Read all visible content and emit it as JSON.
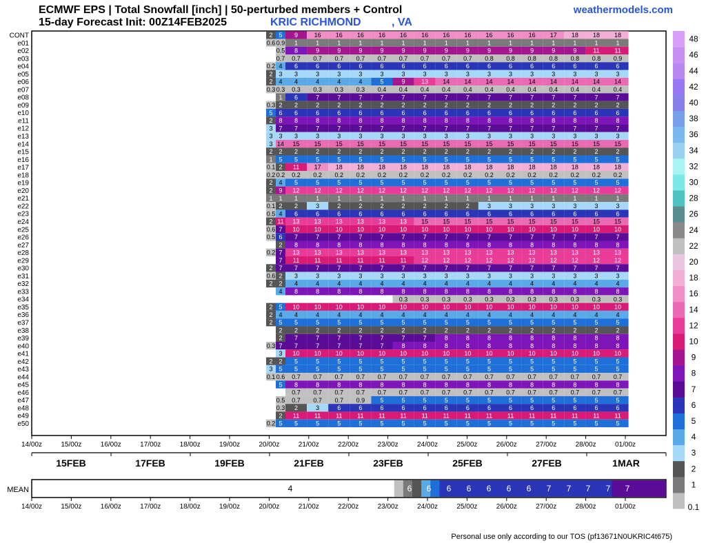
{
  "header": {
    "title": "ECMWF EPS | Total Snowfall [inch] | 50-perturbed members + Control",
    "subtitle": "15-day Forecast Init: 00Z14FEB2025",
    "station": "KRIC RICHMOND",
    "state": ", VA",
    "brand": "weathermodels.com"
  },
  "footer": {
    "tos": "Personal use only according to our TOS (pf13671N0UKRIC4t675)"
  },
  "colors": {
    "brand": "#2a55d8",
    "scale": [
      "#c0c0c0",
      "#7a7a7a",
      "#555555",
      "#a7d8f8",
      "#5aaae8",
      "#1f6fd8",
      "#2a35b8",
      "#5a0c96",
      "#7e15b8",
      "#a5158f",
      "#d81b76",
      "#e83c98",
      "#ea6ab3",
      "#f08fc5",
      "#f2b0d6",
      "#e8c6e0",
      "#c0c0c0",
      "#8a8a8a",
      "#5a8e8e",
      "#4ec1c1",
      "#7de8e8",
      "#a8f4f4",
      "#9ad0f0",
      "#7cb8f0",
      "#78a0e8",
      "#8880e8",
      "#9878f0",
      "#b888f0",
      "#c890f0",
      "#d8a0f8"
    ]
  },
  "chart_data": {
    "type": "heatmap",
    "title": "ECMWF EPS | Total Snowfall [inch] | 50-perturbed members + Control",
    "units": "inch",
    "x_ticks": [
      "14/00z",
      "15/00z",
      "16/00z",
      "17/00z",
      "18/00z",
      "19/00z",
      "20/00z",
      "21/00z",
      "22/00z",
      "23/00z",
      "24/00z",
      "25/00z",
      "26/00z",
      "27/00z",
      "28/00z",
      "01/00z"
    ],
    "date_labels": [
      "15FEB",
      "17FEB",
      "19FEB",
      "21FEB",
      "23FEB",
      "25FEB",
      "27FEB",
      "1MAR"
    ],
    "colorbar_ticks": [
      "0.1",
      "1",
      "2",
      "3",
      "4",
      "5",
      "6",
      "7",
      "8",
      "9",
      "10",
      "12",
      "14",
      "16",
      "18",
      "20",
      "22",
      "24",
      "26",
      "28",
      "30",
      "32",
      "34",
      "36",
      "38",
      "40",
      "42",
      "44",
      "46",
      "48"
    ],
    "mean_label": "MEAN",
    "mean": [
      null,
      null,
      null,
      null,
      null,
      null,
      null,
      null,
      null,
      null,
      null,
      null,
      null,
      null,
      null,
      null,
      null,
      null,
      null,
      null,
      null,
      null,
      null,
      null,
      null,
      null,
      null,
      null,
      null,
      null,
      null,
      null,
      null,
      null,
      null,
      null,
      null,
      null,
      null,
      null,
      0.2,
      1,
      2,
      4,
      5,
      6,
      6,
      6,
      6,
      6,
      6,
      6,
      6,
      6,
      6,
      6,
      6,
      6,
      6,
      6,
      6,
      6,
      6,
      6,
      7,
      7,
      7,
      7,
      7,
      7
    ],
    "members": [
      {
        "name": "CONT",
        "values": [
          2,
          5,
          9,
          16,
          16,
          16,
          16,
          16,
          16,
          16,
          16,
          16,
          16,
          16,
          17,
          18,
          18,
          18
        ]
      },
      {
        "name": "e01",
        "values": [
          0.6,
          0.9,
          1,
          1,
          1,
          1,
          1,
          1,
          1,
          1,
          1,
          1,
          1,
          1,
          1,
          1,
          1,
          1
        ]
      },
      {
        "name": "e02",
        "values": [
          null,
          0.5,
          8,
          9,
          9,
          9,
          9,
          9,
          9,
          9,
          9,
          9,
          9,
          9,
          9,
          9,
          11,
          11
        ]
      },
      {
        "name": "e03",
        "values": [
          null,
          0.7,
          0.7,
          0.7,
          0.7,
          0.7,
          0.7,
          0.7,
          0.7,
          0.7,
          0.7,
          0.8,
          0.8,
          0.8,
          0.8,
          0.8,
          0.8,
          0.9
        ]
      },
      {
        "name": "e04",
        "values": [
          0.2,
          4,
          6,
          6,
          6,
          6,
          6,
          6,
          6,
          6,
          6,
          6,
          6,
          6,
          6,
          6,
          6,
          6
        ]
      },
      {
        "name": "e05",
        "values": [
          2,
          3,
          3,
          3,
          3,
          3,
          3,
          3,
          3,
          3,
          3,
          3,
          3,
          3,
          3,
          3,
          3,
          3
        ]
      },
      {
        "name": "e06",
        "values": [
          2,
          4,
          4,
          4,
          4,
          4,
          5,
          9,
          13,
          14,
          14,
          14,
          14,
          14,
          14,
          14,
          14,
          14
        ]
      },
      {
        "name": "e07",
        "values": [
          0.3,
          0.3,
          0.3,
          0.3,
          0.3,
          0.3,
          0.4,
          0.4,
          0.4,
          0.4,
          0.4,
          0.4,
          0.4,
          0.4,
          0.4,
          0.4,
          0.4,
          0.4
        ]
      },
      {
        "name": "e08",
        "values": [
          null,
          1,
          6,
          7,
          7,
          7,
          7,
          7,
          7,
          7,
          7,
          7,
          7,
          7,
          7,
          7,
          7,
          7
        ]
      },
      {
        "name": "e09",
        "values": [
          0.3,
          2,
          2,
          2,
          2,
          2,
          2,
          2,
          2,
          2,
          2,
          2,
          2,
          2,
          2,
          2,
          2,
          2
        ]
      },
      {
        "name": "e10",
        "values": [
          5,
          6,
          6,
          6,
          6,
          6,
          6,
          6,
          6,
          6,
          6,
          6,
          6,
          6,
          6,
          6,
          6,
          6
        ]
      },
      {
        "name": "e11",
        "values": [
          2,
          8,
          8,
          8,
          8,
          8,
          8,
          8,
          8,
          8,
          8,
          8,
          8,
          8,
          8,
          8,
          8,
          8
        ]
      },
      {
        "name": "e12",
        "values": [
          3,
          7,
          7,
          7,
          7,
          7,
          7,
          7,
          7,
          7,
          7,
          7,
          7,
          7,
          7,
          7,
          7,
          7
        ]
      },
      {
        "name": "e13",
        "values": [
          3,
          3,
          3,
          3,
          3,
          3,
          3,
          3,
          3,
          3,
          3,
          3,
          3,
          3,
          3,
          3,
          3,
          3
        ]
      },
      {
        "name": "e14",
        "values": [
          3,
          14,
          15,
          15,
          15,
          15,
          15,
          15,
          15,
          15,
          15,
          15,
          15,
          15,
          15,
          15,
          15,
          15
        ]
      },
      {
        "name": "e15",
        "values": [
          2,
          2,
          2,
          2,
          2,
          2,
          2,
          2,
          2,
          2,
          2,
          2,
          2,
          2,
          2,
          2,
          2,
          2
        ]
      },
      {
        "name": "e16",
        "values": [
          1.0,
          5,
          5,
          5,
          5,
          5,
          5,
          5,
          5,
          5,
          5,
          5,
          5,
          5,
          5,
          5,
          5,
          5
        ]
      },
      {
        "name": "e17",
        "values": [
          0.1,
          2,
          11,
          17,
          18,
          18,
          18,
          18,
          18,
          18,
          18,
          18,
          18,
          18,
          18,
          18,
          18,
          18
        ]
      },
      {
        "name": "e18",
        "values": [
          0.2,
          0.2,
          0.2,
          0.2,
          0.2,
          0.2,
          0.2,
          0.2,
          0.2,
          0.2,
          0.2,
          0.2,
          0.2,
          0.2,
          0.2,
          0.2,
          0.2,
          0.2
        ]
      },
      {
        "name": "e19",
        "values": [
          2,
          4,
          5,
          5,
          5,
          5,
          5,
          5,
          5,
          5,
          5,
          5,
          5,
          5,
          5,
          5,
          5,
          5
        ]
      },
      {
        "name": "e20",
        "values": [
          2,
          9,
          12,
          12,
          12,
          12,
          12,
          12,
          12,
          12,
          12,
          12,
          12,
          12,
          12,
          12,
          12,
          12
        ]
      },
      {
        "name": "e21",
        "values": [
          1.0,
          1.0,
          1.0,
          1.0,
          1.0,
          1.0,
          1.0,
          1.0,
          1.0,
          1.0,
          1.0,
          1.0,
          1.0,
          1.0,
          1.0,
          1.0,
          1.0,
          1.0
        ]
      },
      {
        "name": "e22",
        "values": [
          0.1,
          2,
          2,
          3,
          2,
          2,
          2,
          2,
          2,
          2,
          2,
          3,
          3,
          3,
          3,
          3,
          3,
          3
        ]
      },
      {
        "name": "e23",
        "values": [
          0.5,
          4,
          6,
          6,
          6,
          6,
          6,
          6,
          6,
          6,
          6,
          6,
          6,
          6,
          6,
          6,
          6,
          6
        ]
      },
      {
        "name": "e24",
        "values": [
          2,
          11,
          13,
          13,
          13,
          13,
          13,
          13,
          15,
          15,
          15,
          15,
          15,
          15,
          15,
          15,
          15,
          15
        ]
      },
      {
        "name": "e25",
        "values": [
          0.6,
          7,
          10,
          10,
          10,
          10,
          10,
          10,
          10,
          10,
          10,
          10,
          10,
          10,
          10,
          10,
          10,
          10
        ]
      },
      {
        "name": "e26",
        "values": [
          0.5,
          6,
          7,
          7,
          7,
          7,
          7,
          7,
          7,
          7,
          7,
          7,
          7,
          7,
          7,
          7,
          7,
          7
        ]
      },
      {
        "name": "e27",
        "values": [
          null,
          2,
          8,
          8,
          8,
          8,
          8,
          8,
          8,
          8,
          8,
          8,
          8,
          8,
          8,
          8,
          8,
          8
        ]
      },
      {
        "name": "e28",
        "values": [
          0.2,
          7,
          13,
          13,
          13,
          13,
          13,
          13,
          13,
          13,
          13,
          13,
          13,
          13,
          13,
          13,
          13,
          13
        ]
      },
      {
        "name": "e29",
        "values": [
          null,
          7,
          11,
          11,
          11,
          11,
          11,
          11,
          12,
          12,
          12,
          12,
          12,
          12,
          12,
          12,
          12,
          12
        ]
      },
      {
        "name": "e30",
        "values": [
          2,
          7,
          7,
          7,
          7,
          7,
          7,
          7,
          7,
          7,
          7,
          7,
          7,
          7,
          7,
          7,
          7,
          7
        ]
      },
      {
        "name": "e31",
        "values": [
          0.6,
          2,
          3,
          3,
          3,
          3,
          3,
          3,
          3,
          3,
          3,
          3,
          3,
          3,
          3,
          3,
          3,
          3
        ]
      },
      {
        "name": "e32",
        "values": [
          2,
          2,
          4,
          4,
          4,
          4,
          4,
          4,
          4,
          4,
          4,
          4,
          4,
          4,
          4,
          4,
          4,
          4
        ]
      },
      {
        "name": "e33",
        "values": [
          null,
          4,
          8,
          8,
          8,
          8,
          8,
          8,
          8,
          8,
          8,
          8,
          8,
          8,
          8,
          8,
          8,
          8
        ]
      },
      {
        "name": "e34",
        "values": [
          null,
          null,
          null,
          null,
          null,
          null,
          null,
          0.3,
          0.3,
          0.3,
          0.3,
          0.3,
          0.3,
          0.3,
          0.3,
          0.3,
          0.3,
          0.3
        ]
      },
      {
        "name": "e35",
        "values": [
          2,
          5,
          10,
          10,
          10,
          10,
          10,
          10,
          10,
          10,
          10,
          10,
          10,
          10,
          10,
          10,
          10,
          10
        ]
      },
      {
        "name": "e36",
        "values": [
          2,
          4,
          4,
          4,
          4,
          4,
          4,
          4,
          4,
          4,
          4,
          4,
          4,
          4,
          4,
          4,
          4,
          4
        ]
      },
      {
        "name": "e37",
        "values": [
          2,
          5,
          5,
          5,
          5,
          5,
          5,
          5,
          5,
          5,
          5,
          5,
          5,
          5,
          5,
          5,
          5,
          5
        ]
      },
      {
        "name": "e38",
        "values": [
          null,
          2,
          2,
          2,
          2,
          2,
          2,
          2,
          2,
          2,
          2,
          2,
          2,
          2,
          2,
          2,
          2,
          2
        ]
      },
      {
        "name": "e39",
        "values": [
          null,
          2,
          7,
          7,
          7,
          7,
          7,
          7,
          7,
          8,
          8,
          8,
          8,
          8,
          8,
          8,
          8,
          8
        ]
      },
      {
        "name": "e40",
        "values": [
          0.3,
          7,
          7,
          7,
          7,
          7,
          7,
          8,
          8,
          8,
          8,
          8,
          8,
          8,
          8,
          8,
          8,
          8
        ]
      },
      {
        "name": "e41",
        "values": [
          null,
          3,
          10,
          10,
          10,
          10,
          10,
          10,
          10,
          10,
          10,
          10,
          10,
          10,
          10,
          10,
          10,
          10
        ]
      },
      {
        "name": "e42",
        "values": [
          2,
          2,
          5,
          5,
          5,
          5,
          5,
          5,
          5,
          5,
          5,
          5,
          5,
          5,
          5,
          5,
          5,
          5
        ]
      },
      {
        "name": "e43",
        "values": [
          3,
          5,
          5,
          5,
          5,
          5,
          5,
          5,
          5,
          5,
          5,
          5,
          5,
          5,
          5,
          5,
          5,
          5
        ]
      },
      {
        "name": "e44",
        "values": [
          0.1,
          0.6,
          0.7,
          0.7,
          0.7,
          0.7,
          0.7,
          0.7,
          0.7,
          0.7,
          0.7,
          0.7,
          0.7,
          0.7,
          0.7,
          0.7,
          0.7,
          0.7
        ]
      },
      {
        "name": "e45",
        "values": [
          null,
          5,
          8,
          8,
          8,
          8,
          8,
          8,
          8,
          8,
          8,
          8,
          8,
          8,
          8,
          8,
          8,
          8
        ]
      },
      {
        "name": "e46",
        "values": [
          null,
          null,
          0.7,
          0.7,
          0.7,
          0.7,
          0.7,
          0.7,
          0.7,
          0.7,
          0.7,
          0.7,
          0.7,
          0.7,
          0.7,
          0.7,
          0.7,
          0.7
        ]
      },
      {
        "name": "e47",
        "values": [
          null,
          0.5,
          0.7,
          0.7,
          0.7,
          0.9,
          5,
          5,
          5,
          5,
          5,
          5,
          5,
          5,
          5,
          5,
          5,
          5
        ]
      },
      {
        "name": "e48",
        "values": [
          null,
          0.3,
          2,
          3,
          6,
          6,
          6,
          6,
          6,
          6,
          6,
          6,
          6,
          6,
          6,
          6,
          6,
          6
        ]
      },
      {
        "name": "e49",
        "values": [
          null,
          2,
          11,
          11,
          11,
          11,
          11,
          11,
          11,
          11,
          11,
          11,
          11,
          11,
          11,
          11,
          11,
          11
        ]
      },
      {
        "name": "e50",
        "values": [
          0.2,
          5,
          5,
          5,
          5,
          5,
          5,
          5,
          5,
          5,
          5,
          5,
          5,
          5,
          5,
          5,
          5,
          5
        ]
      }
    ]
  }
}
